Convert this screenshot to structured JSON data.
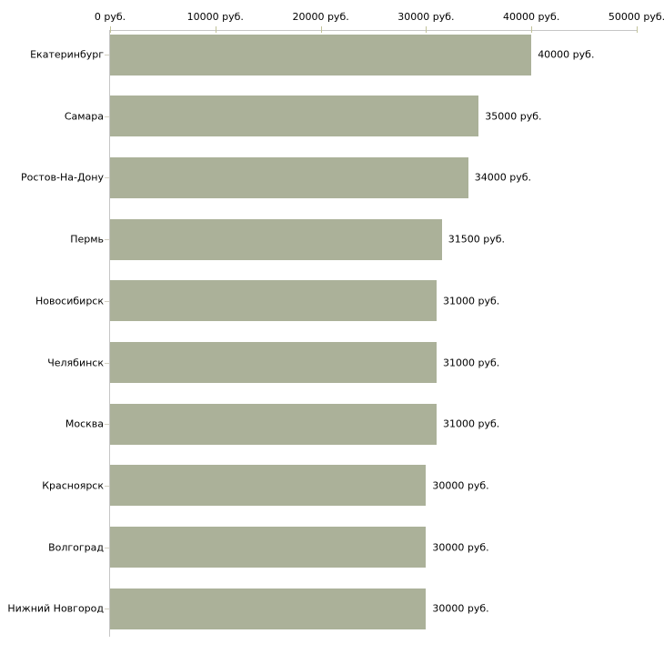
{
  "chart_data": {
    "type": "bar",
    "orientation": "horizontal",
    "title": "",
    "xlabel": "",
    "ylabel": "",
    "categories": [
      "Екатеринбург",
      "Самара",
      "Ростов-На-Дону",
      "Пермь",
      "Новосибирск",
      "Челябинск",
      "Москва",
      "Красноярск",
      "Волгоград",
      "Нижний Новгород"
    ],
    "values": [
      40000,
      35000,
      34000,
      31500,
      31000,
      31000,
      31000,
      30000,
      30000,
      30000
    ],
    "value_labels": [
      "40000 руб.",
      "35000 руб.",
      "34000 руб.",
      "31500 руб.",
      "31000 руб.",
      "31000 руб.",
      "31000 руб.",
      "30000 руб.",
      "30000 руб.",
      "30000 руб."
    ],
    "x_axis": {
      "position": "top",
      "min": 0,
      "max": 50000,
      "ticks": [
        {
          "value": 0,
          "label": "0 руб."
        },
        {
          "value": 10000,
          "label": "10000 руб."
        },
        {
          "value": 20000,
          "label": "20000 руб."
        },
        {
          "value": 30000,
          "label": "30000 руб."
        },
        {
          "value": 40000,
          "label": "40000 руб."
        },
        {
          "value": 50000,
          "label": "50000 руб."
        }
      ]
    },
    "grid": "off",
    "legend": "none",
    "colors": {
      "bar_fill": "#abb199",
      "axis_line": "#c6c6c6",
      "x_tick_mark": "#c2c39a",
      "y_tick_mark": "#d2cfc0",
      "text": "#000000",
      "background": "#ffffff"
    }
  }
}
